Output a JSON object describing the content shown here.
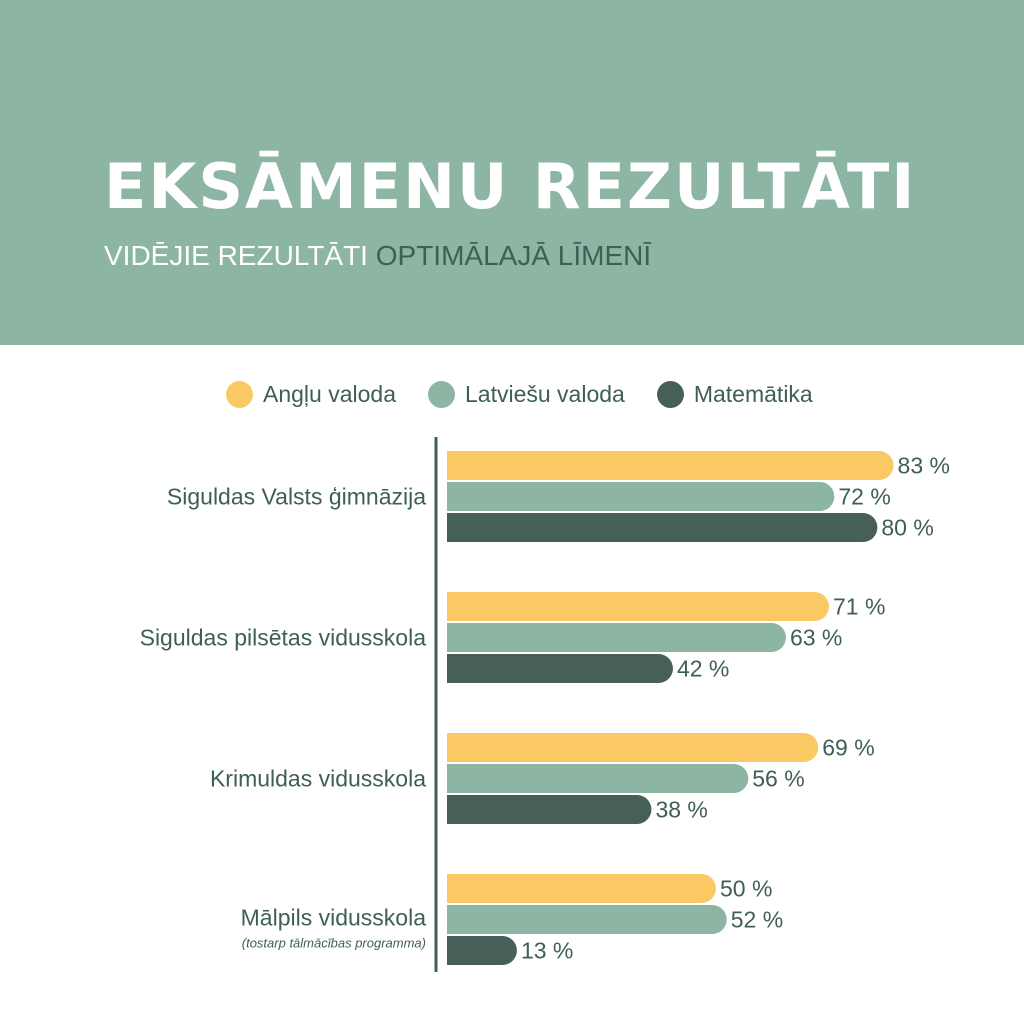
{
  "header": {
    "title": "EKSĀMENU REZULTĀTI",
    "subtitle_part1": "VIDĒJIE REZULTĀTI",
    "subtitle_part2": "OPTIMĀLAJĀ LĪMENĪ"
  },
  "colors": {
    "header_bg": "#8db5a3",
    "title": "#ffffff",
    "subtitle_light": "#ffffff",
    "subtitle_dark": "#3f5f56",
    "text": "#3f5f56",
    "axis": "#3f5f56",
    "series": [
      "#fbc964",
      "#8db5a3",
      "#465f58"
    ]
  },
  "chart_data": {
    "type": "bar",
    "orientation": "horizontal",
    "categories": [
      "Siguldas Valsts ģimnāzija",
      "Siguldas pilsētas vidusskola",
      "Krimuldas vidusskola",
      "Mālpils vidusskola"
    ],
    "category_notes": [
      "",
      "",
      "",
      "(tostarp tālmācības programma)"
    ],
    "series": [
      {
        "name": "Angļu valoda",
        "values": [
          83,
          71,
          69,
          50
        ]
      },
      {
        "name": "Latviešu valoda",
        "values": [
          72,
          63,
          56,
          52
        ]
      },
      {
        "name": "Matemātika",
        "values": [
          80,
          42,
          38,
          13
        ]
      }
    ],
    "value_suffix": " %",
    "xlim": [
      0,
      100
    ],
    "grid": false,
    "legend_position": "top"
  }
}
